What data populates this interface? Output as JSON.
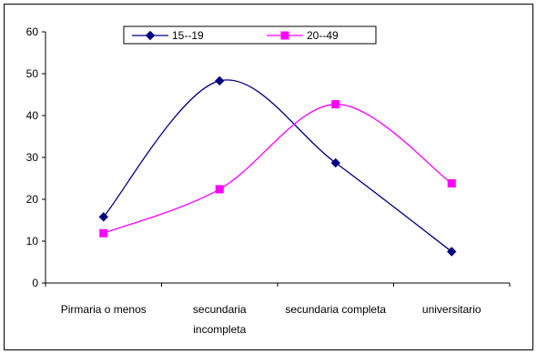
{
  "chart_data": {
    "type": "line",
    "categories": [
      "Pirmaria o menos",
      "secundaria incompleta",
      "secundaria completa",
      "universitario"
    ],
    "category_lines": [
      [
        "Pirmaria o menos"
      ],
      [
        "secundaria",
        "incompleta"
      ],
      [
        "secundaria completa"
      ],
      [
        "universitario"
      ]
    ],
    "series": [
      {
        "name": "15--19",
        "values": [
          15.8,
          48.3,
          28.7,
          7.5
        ],
        "color": "#000080",
        "marker": "diamond"
      },
      {
        "name": "20--49",
        "values": [
          11.9,
          22.4,
          42.7,
          23.8
        ],
        "color": "#ff00ff",
        "marker": "square"
      }
    ],
    "y_ticks": [
      "0",
      "10",
      "20",
      "30",
      "40",
      "50",
      "60"
    ],
    "ylim": [
      0,
      60
    ],
    "grid": false,
    "smooth": true,
    "legend_position": "top-center"
  }
}
